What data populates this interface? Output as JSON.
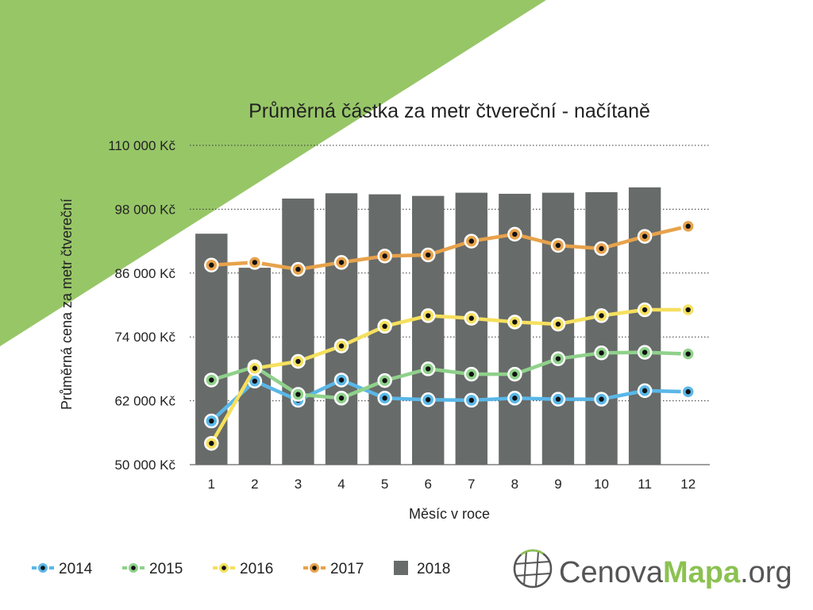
{
  "chart_data": {
    "type": "bar",
    "title": "Průměrná částka za metr čtvereční - načítaně",
    "xlabel": "Měsíc v roce",
    "ylabel": "Průměrná cena za metr čtvereční",
    "categories": [
      "1",
      "2",
      "3",
      "4",
      "5",
      "6",
      "7",
      "8",
      "9",
      "10",
      "11",
      "12"
    ],
    "ylim": [
      50000,
      110000
    ],
    "yticks": [
      50000,
      62000,
      74000,
      86000,
      98000,
      110000
    ],
    "ytick_labels": [
      "50 000 Kč",
      "62 000 Kč",
      "74 000 Kč",
      "86 000 Kč",
      "98 000 Kč",
      "110 000 Kč"
    ],
    "grid": "horizontal-dotted",
    "legend_position": "bottom-left",
    "bar_series": {
      "name": "2018",
      "color": "#676b69",
      "values": [
        93400,
        87000,
        100000,
        101000,
        100800,
        100500,
        101100,
        100900,
        101100,
        101200,
        102100,
        null
      ]
    },
    "series": [
      {
        "name": "2014",
        "color": "#5ab7e8",
        "values": [
          58200,
          65700,
          62100,
          65900,
          62500,
          62200,
          62100,
          62500,
          62300,
          62300,
          63900,
          63700
        ]
      },
      {
        "name": "2015",
        "color": "#8fd18b",
        "values": [
          65900,
          68400,
          63200,
          62500,
          65800,
          68000,
          67000,
          67000,
          69900,
          71000,
          71100,
          70800
        ]
      },
      {
        "name": "2016",
        "color": "#f5e05e",
        "values": [
          54000,
          68100,
          69400,
          72300,
          76000,
          78000,
          77500,
          76800,
          76400,
          78000,
          79100,
          79100
        ]
      },
      {
        "name": "2017",
        "color": "#e7a24b",
        "values": [
          87500,
          88000,
          86700,
          88000,
          89200,
          89400,
          92000,
          93300,
          91200,
          90600,
          92900,
          94800
        ]
      }
    ],
    "legend_order": [
      "2014",
      "2015",
      "2016",
      "2017",
      "2018"
    ]
  },
  "brand": {
    "logo_light": "Cenova",
    "logo_bold": "Mapa",
    "logo_suffix": ".org",
    "accent_color": "#97c667",
    "globe_icon": "globe-grid-icon"
  }
}
